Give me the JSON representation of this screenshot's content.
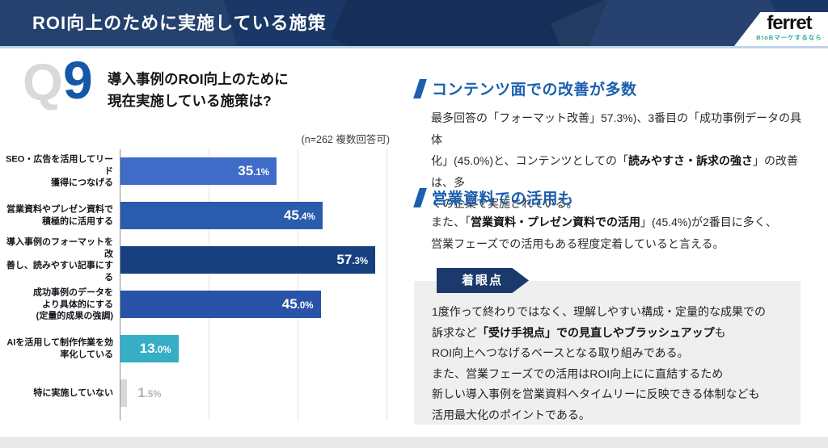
{
  "header": {
    "title": "ROI向上のために実施している施策",
    "logo_text": "ferret",
    "logo_tagline": "BtoBマーケするなら"
  },
  "question": {
    "q_letter": "Q",
    "q_number": "9",
    "line1": "導入事例のROI向上のために",
    "line2": "現在実施している施策は?"
  },
  "chart_data": {
    "type": "bar",
    "orientation": "horizontal",
    "title": "導入事例のROI向上のために現在実施している施策は?",
    "note": "(n=262 複数回答可)",
    "categories": [
      "SEO・広告を活用してリード獲得につなげる",
      "営業資料やプレゼン資料で積極的に活用する",
      "導入事例のフォーマットを改善し、読みやすい記事にする",
      "成功事例のデータをより具体的にする(定量的成果の強調)",
      "AIを活用して制作作業を効率化している",
      "特に実施していない"
    ],
    "category_lines": [
      [
        "SEO・広告を活用してリード",
        "獲得につなげる"
      ],
      [
        "営業資料やプレゼン資料で",
        "積極的に活用する"
      ],
      [
        "導入事例のフォーマットを改",
        "善し、読みやすい記事にする"
      ],
      [
        "成功事例のデータを",
        "より具体的にする",
        "(定量的成果の強調)"
      ],
      [
        "AIを活用して制作作業を効",
        "率化している"
      ],
      [
        "特に実施していない"
      ]
    ],
    "values": [
      35.1,
      45.4,
      57.3,
      45.0,
      13.0,
      1.5
    ],
    "unit": "%",
    "bar_colors": [
      "#3e6cc7",
      "#2a5cad",
      "#17407e",
      "#2853a6",
      "#35aec6",
      "#d9d9d9"
    ],
    "value_inside": [
      true,
      true,
      true,
      true,
      true,
      false
    ],
    "outside_value_color": "#b3b3b3",
    "xlim": [
      0,
      62
    ],
    "gridlines_pct": [
      20,
      40,
      60
    ],
    "legend": "none",
    "grid": "vertical-light"
  },
  "insights": [
    {
      "heading": "コンテンツ面での改善が多数",
      "lines": [
        [
          {
            "t": "最多回答の「フォーマット改善」57.3%)、3番目の「成功事例データの具体",
            "b": false
          }
        ],
        [
          {
            "t": "化」(45.0%)と、コンテンツとしての「",
            "b": false
          },
          {
            "t": "読みやすさ・訴求の強さ",
            "b": true
          },
          {
            "t": "」の改善は、多",
            "b": false
          }
        ],
        [
          {
            "t": "くの企業で実施されている。",
            "b": false
          }
        ]
      ]
    },
    {
      "heading": "営業資料での活用も",
      "lines": [
        [
          {
            "t": "また、「",
            "b": false
          },
          {
            "t": "営業資料・プレゼン資料での活用",
            "b": true
          },
          {
            "t": "」(45.4%)が2番目に多く、",
            "b": false
          }
        ],
        [
          {
            "t": "営業フェーズでの活用もある程度定着していると言える。",
            "b": false
          }
        ]
      ]
    }
  ],
  "focus_box": {
    "badge": "着眼点",
    "lines": [
      [
        {
          "t": "1度作って終わりではなく、理解しやすい構成・定量的な成果での",
          "b": false
        }
      ],
      [
        {
          "t": "訴求など",
          "b": false
        },
        {
          "t": "「受け手視点」での見直しやブラッシュアップ",
          "b": true
        },
        {
          "t": "も",
          "b": false
        }
      ],
      [
        {
          "t": "ROI向上へつなげるベースとなる取り組みである。",
          "b": false
        }
      ],
      [
        {
          "t": "また、営業フェーズでの活用はROI向上にに直結するため",
          "b": false
        }
      ],
      [
        {
          "t": "新しい導入事例を営業資料へタイムリーに反映できる体制なども",
          "b": false
        }
      ],
      [
        {
          "t": "活用最大化のポイントである。",
          "b": false
        }
      ]
    ]
  },
  "colors": {
    "header_bg": "#1a3767",
    "accent_blue": "#1b5fae",
    "q_number_blue": "#1558a7",
    "badge_navy": "#1b3a6b",
    "focus_box_bg": "#efefef",
    "logo_teal": "#2aab97"
  }
}
